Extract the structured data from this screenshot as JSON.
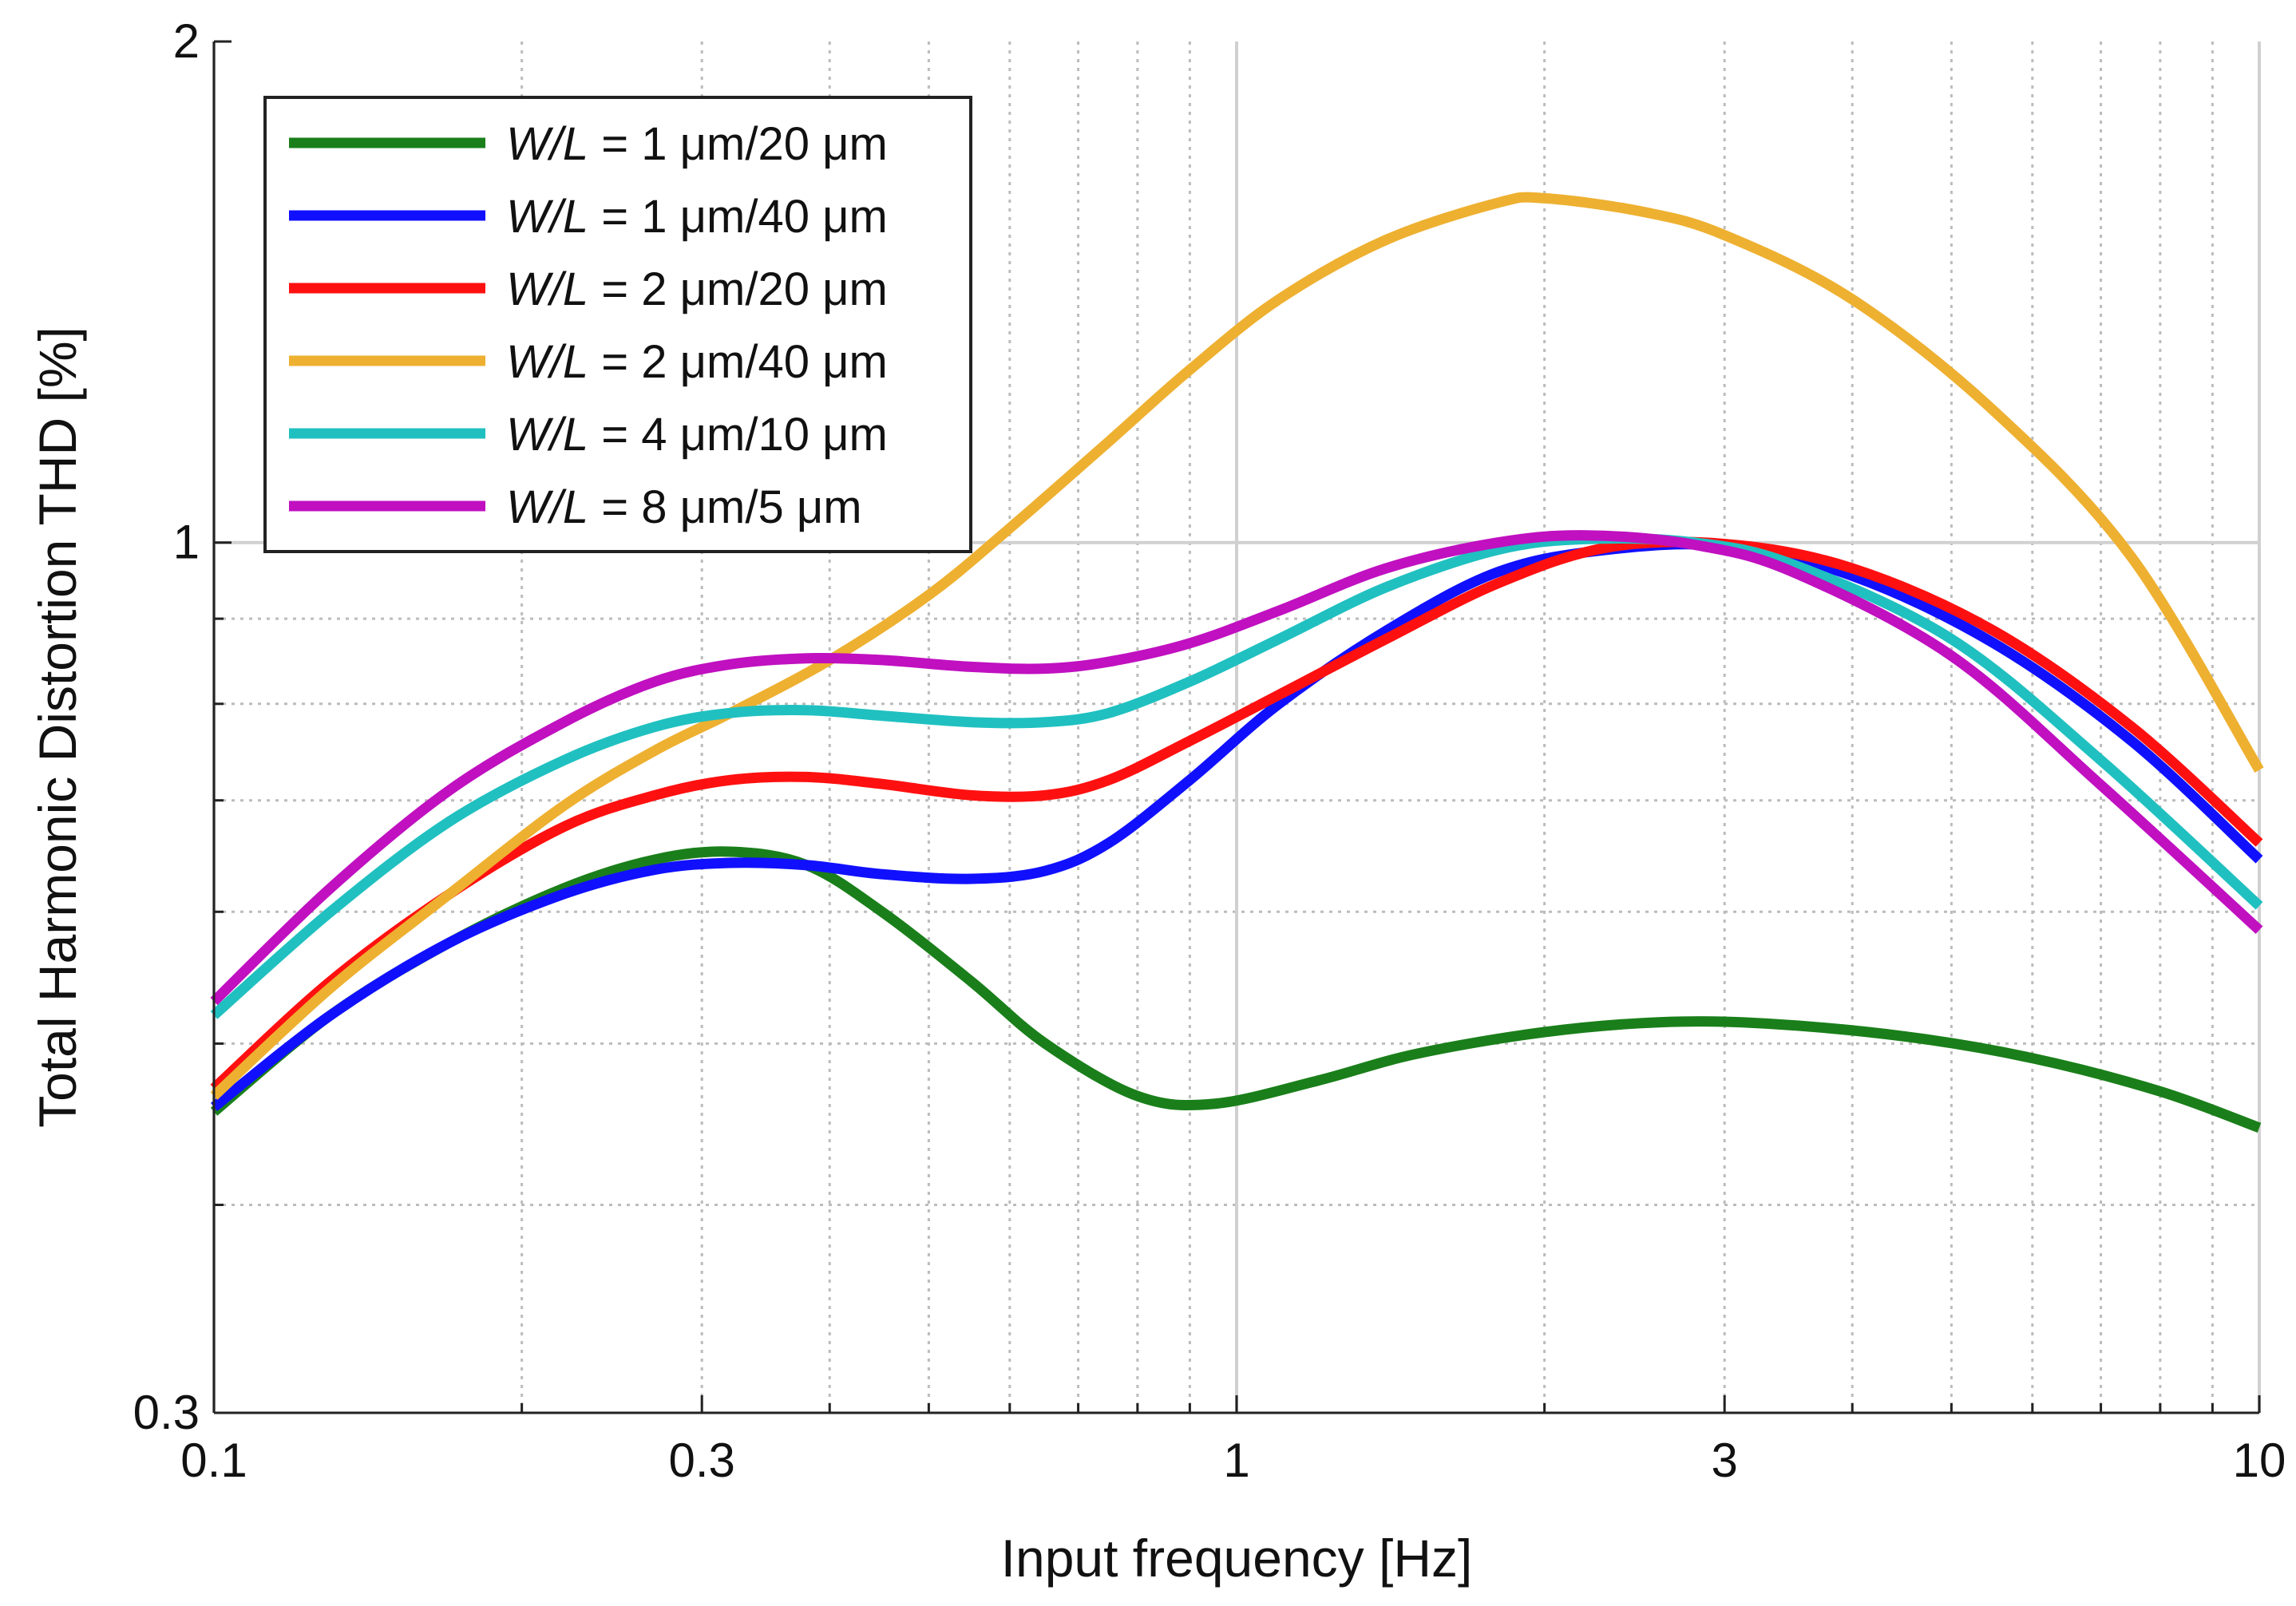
{
  "chart_data": {
    "type": "line",
    "title": "",
    "xlabel": "Input frequency [Hz]",
    "ylabel": "Total Harmonic Distortion THD [%]",
    "xscale": "log",
    "yscale": "log",
    "xlim": [
      0.1,
      10
    ],
    "ylim": [
      0.3,
      2
    ],
    "xticks": [
      0.1,
      0.3,
      1,
      3,
      10
    ],
    "xtick_labels": [
      "0.1",
      "0.3",
      "1",
      "3",
      "10"
    ],
    "yticks": [
      0.3,
      1,
      2
    ],
    "ytick_labels": [
      "0.3",
      "1",
      "2"
    ],
    "grid": "major solid, minor dotted",
    "legend_location": "top-left",
    "series": [
      {
        "name_italic": "W/L",
        "name_rest": " = 1 μm/20 μm",
        "color": "#1a7f1a",
        "x": [
          0.1,
          0.13,
          0.17,
          0.22,
          0.27,
          0.32,
          0.38,
          0.45,
          0.55,
          0.65,
          0.8,
          0.95,
          1.2,
          1.5,
          2.0,
          2.6,
          3.3,
          4.5,
          6.0,
          8.0,
          10.0
        ],
        "y": [
          0.455,
          0.52,
          0.575,
          0.62,
          0.645,
          0.652,
          0.64,
          0.6,
          0.545,
          0.5,
          0.465,
          0.46,
          0.475,
          0.493,
          0.508,
          0.515,
          0.514,
          0.505,
          0.49,
          0.468,
          0.445
        ]
      },
      {
        "name_italic": "W/L",
        "name_rest": " = 1 μm/40 μm",
        "color": "#1010ff",
        "x": [
          0.1,
          0.13,
          0.17,
          0.22,
          0.27,
          0.32,
          0.38,
          0.45,
          0.55,
          0.65,
          0.75,
          0.9,
          1.1,
          1.4,
          1.8,
          2.3,
          3.0,
          4.0,
          5.5,
          7.5,
          10.0
        ],
        "y": [
          0.458,
          0.52,
          0.575,
          0.615,
          0.636,
          0.642,
          0.64,
          0.632,
          0.628,
          0.635,
          0.66,
          0.72,
          0.8,
          0.885,
          0.96,
          0.99,
          0.995,
          0.955,
          0.87,
          0.76,
          0.645
        ]
      },
      {
        "name_italic": "W/L",
        "name_rest": " = 2 μm/20 μm",
        "color": "#ff1010",
        "x": [
          0.1,
          0.13,
          0.17,
          0.22,
          0.27,
          0.32,
          0.38,
          0.45,
          0.55,
          0.65,
          0.75,
          0.9,
          1.1,
          1.4,
          1.8,
          2.3,
          3.0,
          4.0,
          5.5,
          7.5,
          10.0
        ],
        "y": [
          0.47,
          0.545,
          0.615,
          0.675,
          0.705,
          0.72,
          0.723,
          0.716,
          0.705,
          0.705,
          0.72,
          0.76,
          0.81,
          0.875,
          0.945,
          0.993,
          0.998,
          0.965,
          0.885,
          0.775,
          0.66
        ]
      },
      {
        "name_italic": "W/L",
        "name_rest": " = 2 μm/40 μm",
        "color": "#eeb030",
        "x": [
          0.1,
          0.13,
          0.17,
          0.22,
          0.27,
          0.32,
          0.4,
          0.5,
          0.6,
          0.75,
          0.9,
          1.1,
          1.4,
          1.8,
          2.0,
          2.5,
          3.0,
          4.0,
          5.5,
          7.5,
          10.0
        ],
        "y": [
          0.465,
          0.54,
          0.615,
          0.695,
          0.75,
          0.79,
          0.85,
          0.93,
          1.02,
          1.15,
          1.27,
          1.4,
          1.52,
          1.6,
          1.61,
          1.58,
          1.53,
          1.4,
          1.2,
          0.98,
          0.73
        ]
      },
      {
        "name_italic": "W/L",
        "name_rest": " = 4 μm/10 μm",
        "color": "#20c0c0",
        "x": [
          0.1,
          0.13,
          0.17,
          0.22,
          0.27,
          0.32,
          0.38,
          0.45,
          0.55,
          0.65,
          0.75,
          0.9,
          1.1,
          1.4,
          1.8,
          2.2,
          2.8,
          3.5,
          5.0,
          7.0,
          10.0
        ],
        "y": [
          0.52,
          0.6,
          0.68,
          0.74,
          0.775,
          0.79,
          0.793,
          0.787,
          0.78,
          0.78,
          0.79,
          0.825,
          0.875,
          0.94,
          0.99,
          1.005,
          1.0,
          0.97,
          0.875,
          0.74,
          0.605
        ]
      },
      {
        "name_italic": "W/L",
        "name_rest": " = 8 μm/5 μm",
        "color": "#c010c0",
        "x": [
          0.1,
          0.13,
          0.17,
          0.22,
          0.27,
          0.32,
          0.38,
          0.45,
          0.55,
          0.65,
          0.75,
          0.9,
          1.1,
          1.4,
          1.8,
          2.2,
          2.8,
          3.5,
          5.0,
          7.0,
          10.0
        ],
        "y": [
          0.53,
          0.62,
          0.71,
          0.78,
          0.825,
          0.845,
          0.852,
          0.85,
          0.842,
          0.84,
          0.848,
          0.87,
          0.91,
          0.965,
          1.0,
          1.01,
          0.997,
          0.96,
          0.855,
          0.715,
          0.585
        ]
      }
    ]
  }
}
